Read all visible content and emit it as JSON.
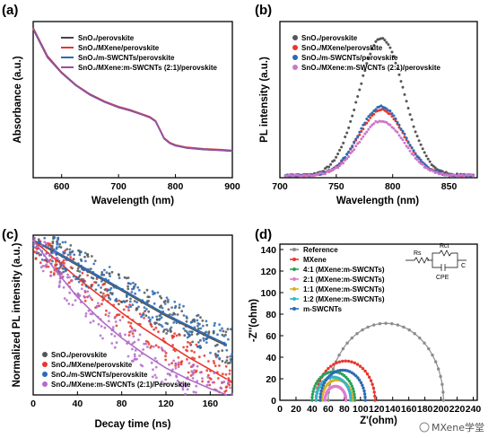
{
  "chart_data": [
    {
      "panel": "(a)",
      "type": "line",
      "xlabel": "Wavelength (nm)",
      "ylabel": "Absorbance (a.u.)",
      "xlim": [
        550,
        900
      ],
      "ylim": [
        0,
        1
      ],
      "x_ticks": [
        "600",
        "700",
        "800",
        "900"
      ],
      "legend_position": "top-right",
      "x": [
        550,
        575,
        600,
        625,
        650,
        675,
        700,
        720,
        740,
        755,
        765,
        772,
        780,
        790,
        800,
        820,
        850,
        880,
        900
      ],
      "series": [
        {
          "name": "SnO₂/perovskite",
          "color": "#444444",
          "values": [
            0.95,
            0.77,
            0.67,
            0.59,
            0.53,
            0.485,
            0.45,
            0.43,
            0.405,
            0.385,
            0.36,
            0.31,
            0.25,
            0.22,
            0.205,
            0.19,
            0.18,
            0.175,
            0.17
          ]
        },
        {
          "name": "SnO₂/MXene/perovskite",
          "color": "#e8362e",
          "values": [
            0.96,
            0.78,
            0.675,
            0.595,
            0.535,
            0.49,
            0.455,
            0.435,
            0.41,
            0.39,
            0.365,
            0.315,
            0.255,
            0.225,
            0.21,
            0.195,
            0.185,
            0.18,
            0.175
          ]
        },
        {
          "name": "SnO₂/m-SWCNTs/perovskite",
          "color": "#2b6bb5",
          "values": [
            0.955,
            0.775,
            0.672,
            0.592,
            0.532,
            0.487,
            0.452,
            0.432,
            0.407,
            0.387,
            0.362,
            0.312,
            0.252,
            0.222,
            0.207,
            0.192,
            0.182,
            0.177,
            0.172
          ]
        },
        {
          "name": "SnO₂/MXene:m-SWCNTs (2:1)/perovskite",
          "color": "#9b4ea3",
          "values": [
            0.952,
            0.772,
            0.67,
            0.59,
            0.53,
            0.486,
            0.451,
            0.431,
            0.406,
            0.386,
            0.361,
            0.311,
            0.251,
            0.221,
            0.206,
            0.191,
            0.181,
            0.176,
            0.171
          ]
        }
      ]
    },
    {
      "panel": "(b)",
      "type": "scatter",
      "xlabel": "Wavelength (nm)",
      "ylabel": "PL intensity (a.u.)",
      "xlim": [
        700,
        875
      ],
      "ylim": [
        0,
        1
      ],
      "x_ticks": [
        "700",
        "750",
        "800",
        "850"
      ],
      "legend_position": "top-left",
      "peak_center_nm": 790,
      "peak_width_nm": 20,
      "baseline": 0.015,
      "series": [
        {
          "name": "SnO₂/perovskite",
          "color": "#555555",
          "peak": 0.88
        },
        {
          "name": "SnO₂/MXene/perovskite",
          "color": "#e8362e",
          "peak": 0.42
        },
        {
          "name": "SnO₂/m-SWCNTs/perovskite",
          "color": "#2b6bb5",
          "peak": 0.44
        },
        {
          "name": "SnO₂/MXene:m-SWCNTs (2:1)/perovskite",
          "color": "#cc77cc",
          "peak": 0.35
        }
      ]
    },
    {
      "panel": "(c)",
      "type": "scatter",
      "xlabel": "Decay time (ns)",
      "ylabel": "Normalized PL intensity (a.u.)",
      "xlim": [
        0,
        180
      ],
      "x_ticks": [
        "0",
        "40",
        "80",
        "120",
        "160"
      ],
      "legend_position": "bottom-left",
      "x": [
        0,
        20,
        40,
        60,
        80,
        100,
        120,
        140,
        160,
        175
      ],
      "series": [
        {
          "name": "SnO₂/perovskite",
          "color": "#555555",
          "values": [
            0.98,
            0.9,
            0.82,
            0.74,
            0.66,
            0.58,
            0.5,
            0.43,
            0.36,
            0.31
          ]
        },
        {
          "name": "SnO₂/MXene/perovskite",
          "color": "#e8362e",
          "values": [
            0.98,
            0.86,
            0.74,
            0.63,
            0.52,
            0.42,
            0.33,
            0.24,
            0.16,
            0.1
          ]
        },
        {
          "name": "SnO₂/m-SWCNTs/perovskite",
          "color": "#2b6bb5",
          "values": [
            0.98,
            0.91,
            0.83,
            0.75,
            0.67,
            0.59,
            0.51,
            0.44,
            0.37,
            0.32
          ]
        },
        {
          "name": "SnO₂/MXene:m-SWCNTs (2:1)/Perovskite",
          "color": "#b26bc9",
          "values": [
            0.98,
            0.79,
            0.62,
            0.48,
            0.36,
            0.26,
            0.17,
            0.1,
            0.04,
            0.0
          ]
        }
      ]
    },
    {
      "panel": "(d)",
      "type": "scatter",
      "xlabel": "Z'(ohm)",
      "ylabel": "-Z''(ohm)",
      "xlim": [
        0,
        245
      ],
      "ylim": [
        0,
        145
      ],
      "x_ticks": [
        "0",
        "20",
        "40",
        "60",
        "80",
        "100",
        "120",
        "140",
        "160",
        "180",
        "200",
        "220",
        "240"
      ],
      "y_ticks": [
        "0",
        "20",
        "40",
        "60",
        "80",
        "100",
        "120",
        "140"
      ],
      "legend_position": "top-left",
      "series": [
        {
          "name": "Reference",
          "color": "#8c8c8c",
          "z_start": 60,
          "z_end": 203
        },
        {
          "name": "MXene",
          "color": "#e8362e",
          "z_start": 45,
          "z_end": 118
        },
        {
          "name": "4:1 (MXene:m-SWCNTs)",
          "color": "#2aa05a",
          "z_start": 40,
          "z_end": 93
        },
        {
          "name": "2:1 (MXene:m-SWCNTs)",
          "color": "#e07bd0",
          "z_start": 56,
          "z_end": 82
        },
        {
          "name": "1:1 (MXene:m-SWCNTs)",
          "color": "#d8b02b",
          "z_start": 52,
          "z_end": 90
        },
        {
          "name": "1:2 (MXene:m-SWCNTs)",
          "color": "#35b7c9",
          "z_start": 45,
          "z_end": 88
        },
        {
          "name": "m-SWCNTs",
          "color": "#2b6bb5",
          "z_start": 50,
          "z_end": 106
        }
      ]
    }
  ],
  "labels": {
    "a": "(a)",
    "b": "(b)",
    "c": "(c)",
    "d": "(d)"
  },
  "inset": {
    "rs": "Rs",
    "rct": "Rct",
    "cpe": "CPE",
    "c": "C"
  },
  "watermark": "MXene学堂"
}
